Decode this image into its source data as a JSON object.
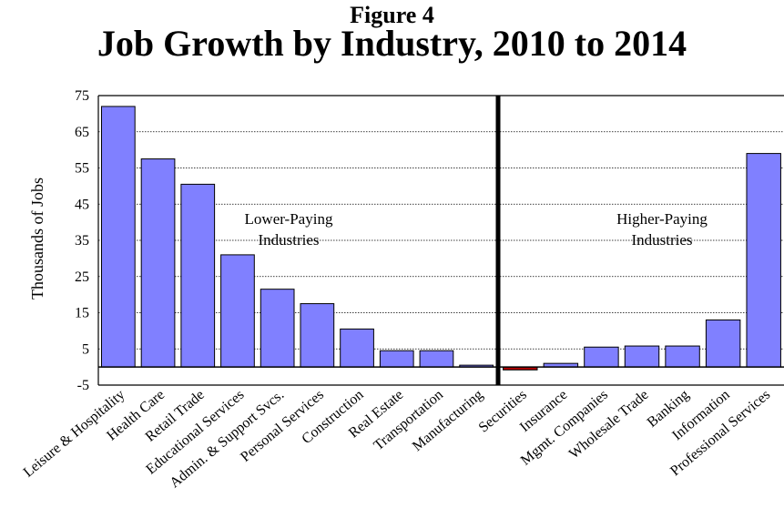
{
  "figure_label": "Figure 4",
  "chart_data": {
    "type": "bar",
    "title": "Job Growth by Industry, 2010 to 2014",
    "ylabel": "Thousands of Jobs",
    "xlabel": "",
    "ylim": [
      -5,
      75
    ],
    "yticks": [
      -5,
      5,
      15,
      25,
      35,
      45,
      55,
      65,
      75
    ],
    "grid": true,
    "bar_color": "#8080ff",
    "negative_bar_color": "#b00000",
    "groups": [
      {
        "label_lines": [
          "Lower-Paying",
          "Industries"
        ],
        "categories": [
          "Leisure & Hospitality",
          "Health Care",
          "Retail Trade",
          "Educational Services",
          "Admin. & Support Svcs.",
          "Personal Services",
          "Construction",
          "Real Estate",
          "Transportation",
          "Manufacturing"
        ],
        "values": [
          72,
          57.5,
          50.5,
          31,
          21.5,
          17.5,
          10.5,
          4.5,
          4.5,
          0.5
        ]
      },
      {
        "label_lines": [
          "Higher-Paying",
          "Industries"
        ],
        "categories": [
          "Securities",
          "Insurance",
          "Mgmt. Companies",
          "Wholesale Trade",
          "Banking",
          "Information",
          "Professional Services"
        ],
        "values": [
          -0.8,
          1,
          5.5,
          5.8,
          5.8,
          13,
          59
        ]
      }
    ]
  }
}
